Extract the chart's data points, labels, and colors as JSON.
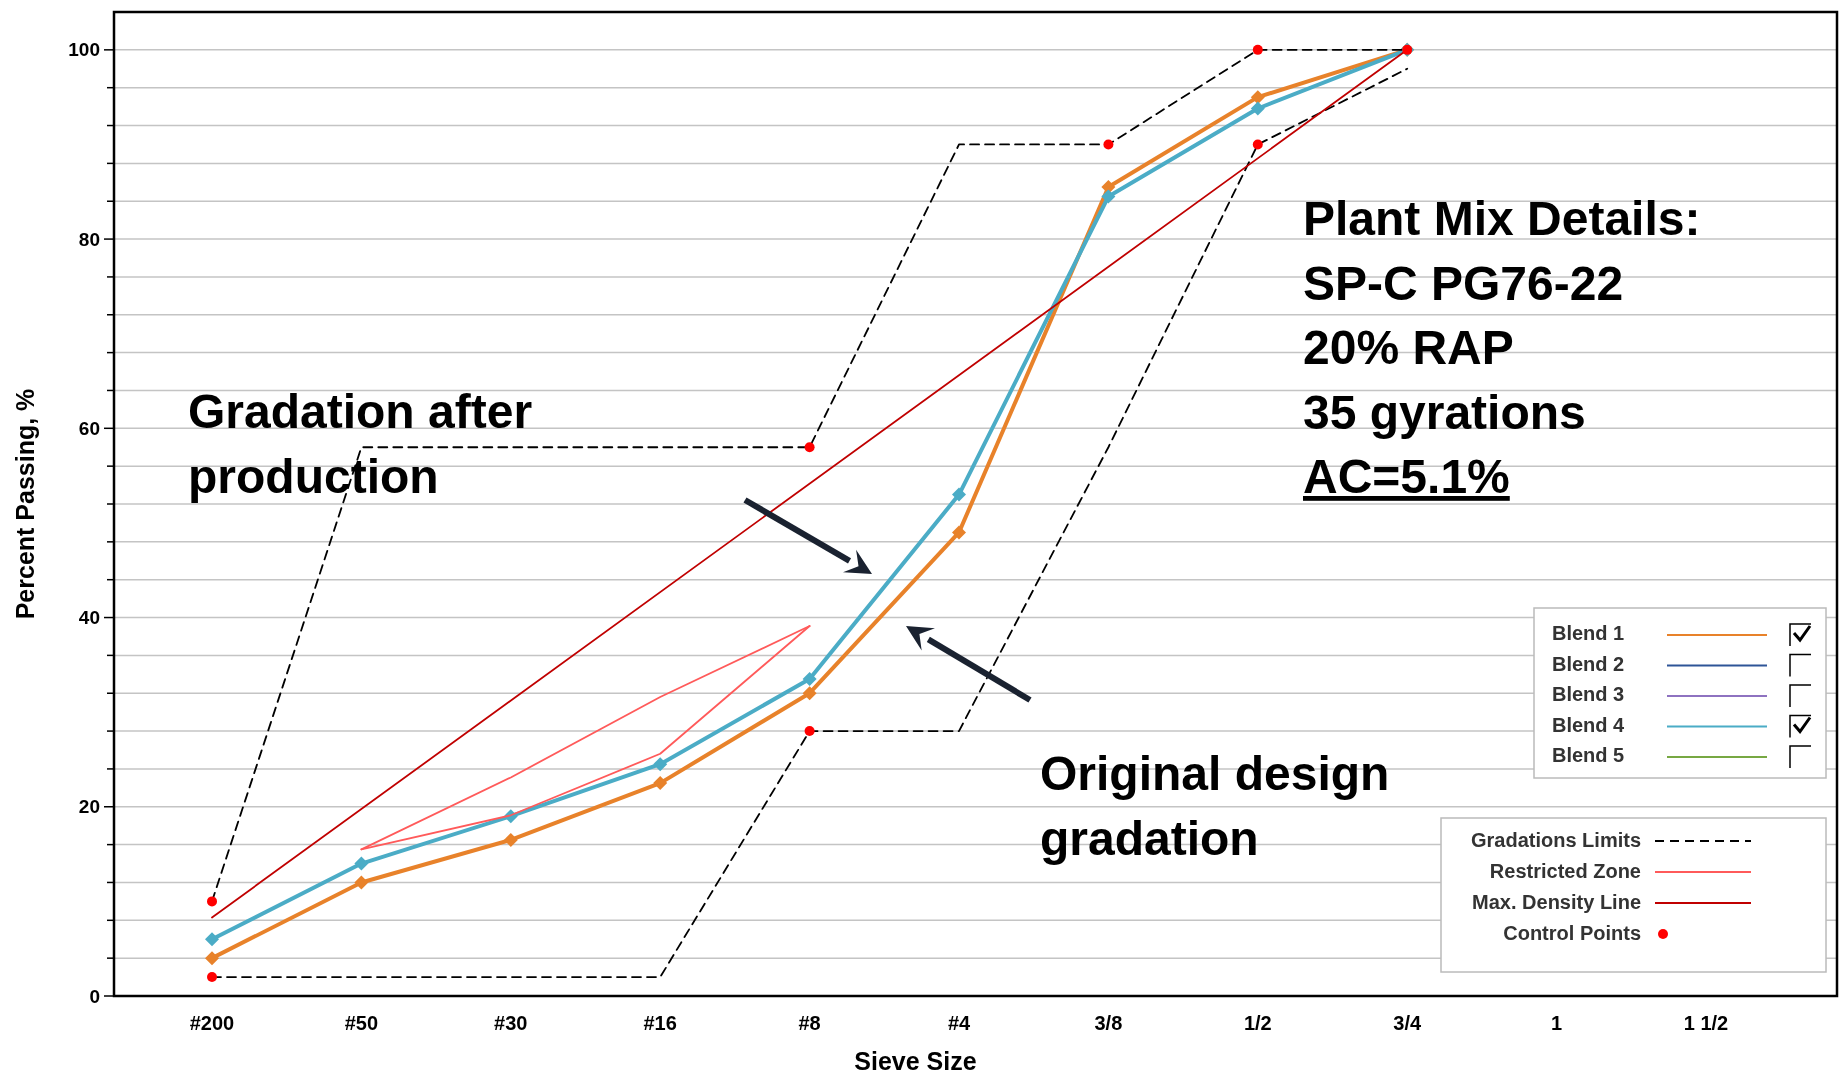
{
  "chart_data": {
    "type": "line",
    "xlabel": "Sieve Size",
    "ylabel": "Percent Passing, %",
    "categories": [
      "#200",
      "#50",
      "#30",
      "#16",
      "#8",
      "#4",
      "3/8",
      "1/2",
      "3/4",
      "1",
      "1 1/2"
    ],
    "ylim": [
      0,
      104
    ],
    "yticks": [
      0,
      {
        "value": 4,
        "label": null
      },
      {
        "value": 8,
        "label": null
      },
      {
        "value": 12,
        "label": null
      },
      {
        "value": 16,
        "label": null
      },
      20,
      {
        "value": 24,
        "label": null
      },
      {
        "value": 28,
        "label": null
      },
      {
        "value": 32,
        "label": null
      },
      {
        "value": 36,
        "label": null
      },
      40,
      {
        "value": 44,
        "label": null
      },
      {
        "value": 48,
        "label": null
      },
      {
        "value": 52,
        "label": null
      },
      {
        "value": 56,
        "label": null
      },
      60,
      {
        "value": 64,
        "label": null
      },
      {
        "value": 68,
        "label": null
      },
      {
        "value": 72,
        "label": null
      },
      {
        "value": 76,
        "label": null
      },
      80,
      {
        "value": 84,
        "label": null
      },
      {
        "value": 88,
        "label": null
      },
      {
        "value": 92,
        "label": null
      },
      {
        "value": 96,
        "label": null
      },
      100
    ],
    "grid": "y",
    "legend": "right",
    "series": [
      {
        "name": "Blend 1",
        "color": "#e8822a",
        "marker": "diamond",
        "values": [
          4,
          12,
          16.5,
          22.5,
          32,
          49,
          85.5,
          95,
          100,
          null,
          null
        ]
      },
      {
        "name": "Blend 2",
        "color": "#2e5597",
        "values": [
          null,
          null,
          null,
          null,
          null,
          null,
          null,
          null,
          null,
          null,
          null
        ]
      },
      {
        "name": "Blend 3",
        "color": "#8e72c0",
        "values": [
          null,
          null,
          null,
          null,
          null,
          null,
          null,
          null,
          null,
          null,
          null
        ]
      },
      {
        "name": "Blend 4",
        "color": "#4bacc6",
        "marker": "diamond",
        "values": [
          6,
          14,
          19,
          24.5,
          33.5,
          53,
          84.5,
          93.8,
          100,
          null,
          null
        ]
      },
      {
        "name": "Blend 5",
        "color": "#77a843",
        "values": [
          null,
          null,
          null,
          null,
          null,
          null,
          null,
          null,
          null,
          null,
          null
        ]
      },
      {
        "name": "Gradations Limits",
        "color": "#000000",
        "line_style": "dashed",
        "x": [
          "#200",
          "#50",
          "#8",
          "#4",
          "3/8",
          "1/2",
          "3/4"
        ],
        "values": [
          10,
          58,
          58,
          90,
          90,
          100,
          100
        ]
      },
      {
        "color": "#000000",
        "line_style": "dashed",
        "x": [
          "#200",
          "#16",
          "#8",
          "#4",
          "3/8",
          "1/2",
          "3/4"
        ],
        "values": [
          2,
          2,
          28,
          28,
          58,
          90,
          98
        ]
      },
      {
        "name": "Restricted Zone",
        "color": "#ff5a5a",
        "line_style": "solid",
        "x": [
          "#50",
          "#30",
          "#16",
          "#8"
        ],
        "values": [
          15.5,
          23.1,
          31.6,
          39.1
        ]
      },
      {
        "color": "#ff5a5a",
        "line_style": "solid",
        "x": [
          "#50",
          "#30",
          "#16",
          "#8"
        ],
        "values": [
          15.5,
          19.1,
          25.6,
          39.1
        ]
      },
      {
        "name": "Max. Density Line",
        "color": "#c00000",
        "line_style": "solid",
        "x": [
          "#200",
          "3/4"
        ],
        "values": [
          8.3,
          100
        ]
      },
      {
        "name": "Control Points",
        "type": "scatter",
        "color": "#ff0000",
        "marker": "circle",
        "x": [
          "#200",
          "#200",
          "#8",
          "#8",
          "3/8",
          "1/2",
          "1/2",
          "3/4"
        ],
        "values": [
          10,
          2,
          58,
          28,
          90,
          100,
          90,
          100
        ]
      }
    ],
    "annotations": [
      "Plant Mix Details:\nSP-C PG76-22\n20% RAP\n35 gyrations\nAC=5.1%",
      "Gradation after\nproduction",
      "Original design\ngradation"
    ]
  }
}
